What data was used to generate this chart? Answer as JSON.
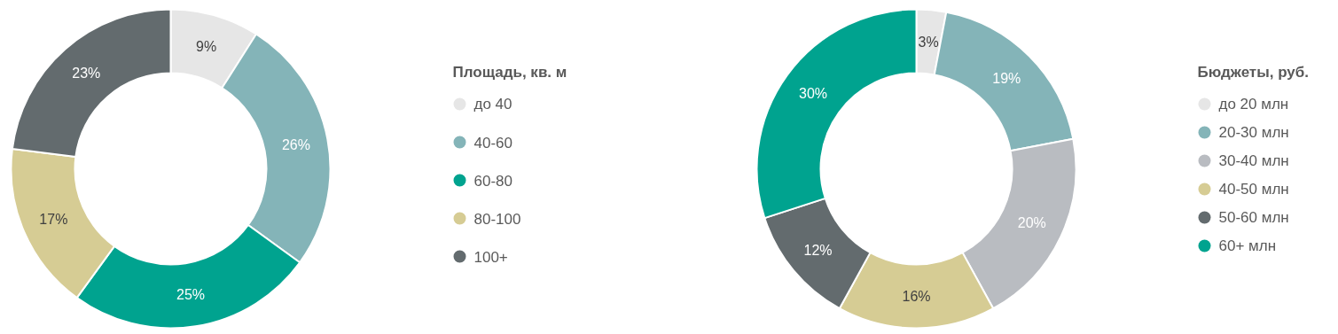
{
  "chart_data": [
    {
      "type": "donut",
      "legend_title": "Площадь, кв. м",
      "categories": [
        "до 40",
        "40-60",
        "60-80",
        "80-100",
        "100+"
      ],
      "values": [
        9,
        26,
        25,
        17,
        23
      ],
      "colors": [
        "#e6e6e6",
        "#84b4b8",
        "#00a38f",
        "#d6cc94",
        "#636b6e"
      ],
      "value_labels": [
        "9%",
        "26%",
        "25%",
        "17%",
        "23%"
      ],
      "legend": "right"
    },
    {
      "type": "donut",
      "legend_title": "Бюджеты, руб.",
      "categories": [
        "до 20 млн",
        "20-30 млн",
        "30-40 млн",
        "40-50 млн",
        "50-60 млн",
        "60+ млн"
      ],
      "values": [
        3,
        19,
        20,
        16,
        12,
        30
      ],
      "colors": [
        "#e6e6e6",
        "#84b4b8",
        "#b9bcc1",
        "#d6cc94",
        "#636b6e",
        "#00a38f"
      ],
      "value_labels": [
        "3%",
        "19%",
        "20%",
        "16%",
        "12%",
        "30%"
      ],
      "legend": "right"
    }
  ]
}
